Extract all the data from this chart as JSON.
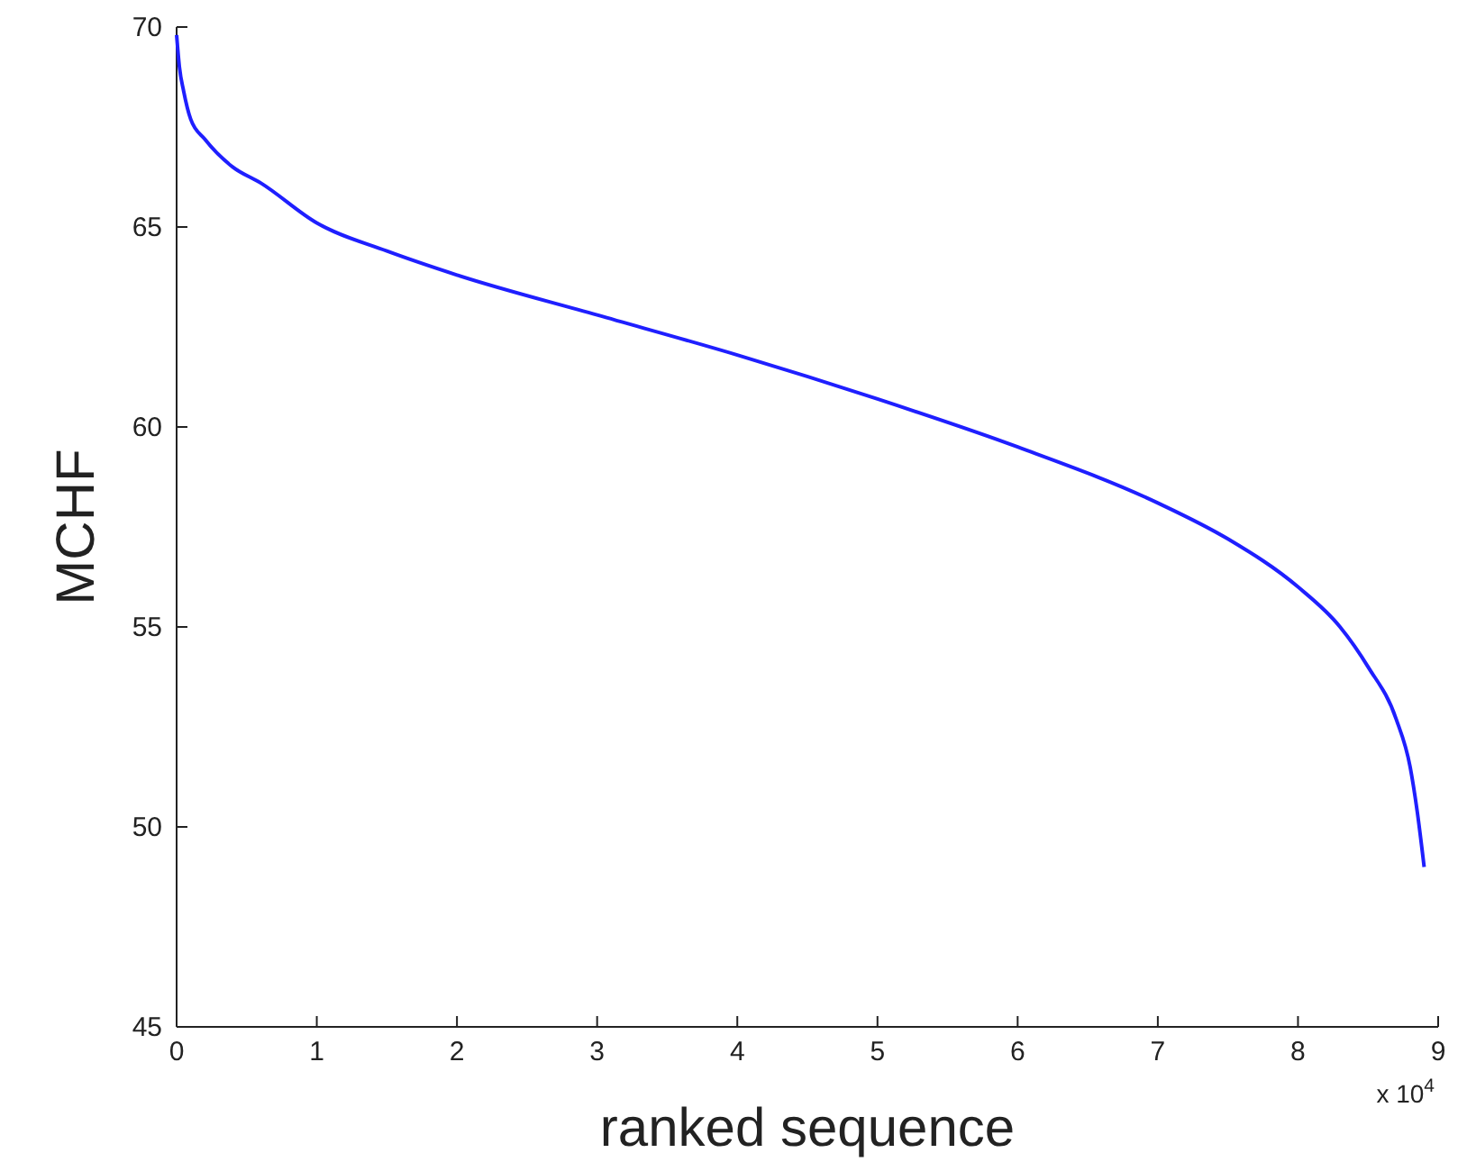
{
  "chart_data": {
    "type": "line",
    "xlabel": "ranked sequence",
    "ylabel": "MCHF",
    "x": [
      0,
      0.02,
      0.05,
      0.1,
      0.2,
      0.4,
      0.6,
      1,
      1.5,
      2,
      3,
      4,
      5,
      6,
      7,
      7.5,
      8,
      8.3,
      8.5,
      8.7,
      8.8,
      8.85,
      8.9
    ],
    "series": [
      {
        "color": "#1f1fff",
        "values": [
          69.8,
          69.0,
          68.4,
          67.7,
          67.2,
          66.5,
          66.1,
          65.1,
          64.4,
          63.8,
          62.8,
          61.8,
          60.7,
          59.5,
          58.1,
          57.2,
          56.0,
          55.0,
          54.0,
          52.7,
          51.5,
          50.4,
          49.0
        ]
      }
    ],
    "xlim": [
      0,
      9
    ],
    "xticks": [
      0,
      1,
      2,
      3,
      4,
      5,
      6,
      7,
      8,
      9
    ],
    "ylim": [
      45,
      70
    ],
    "yticks": [
      45,
      50,
      55,
      60,
      65,
      70
    ],
    "grid": false,
    "marker": "none",
    "line_style": "solid",
    "annotations": [
      "x 10$^{4}$"
    ]
  }
}
